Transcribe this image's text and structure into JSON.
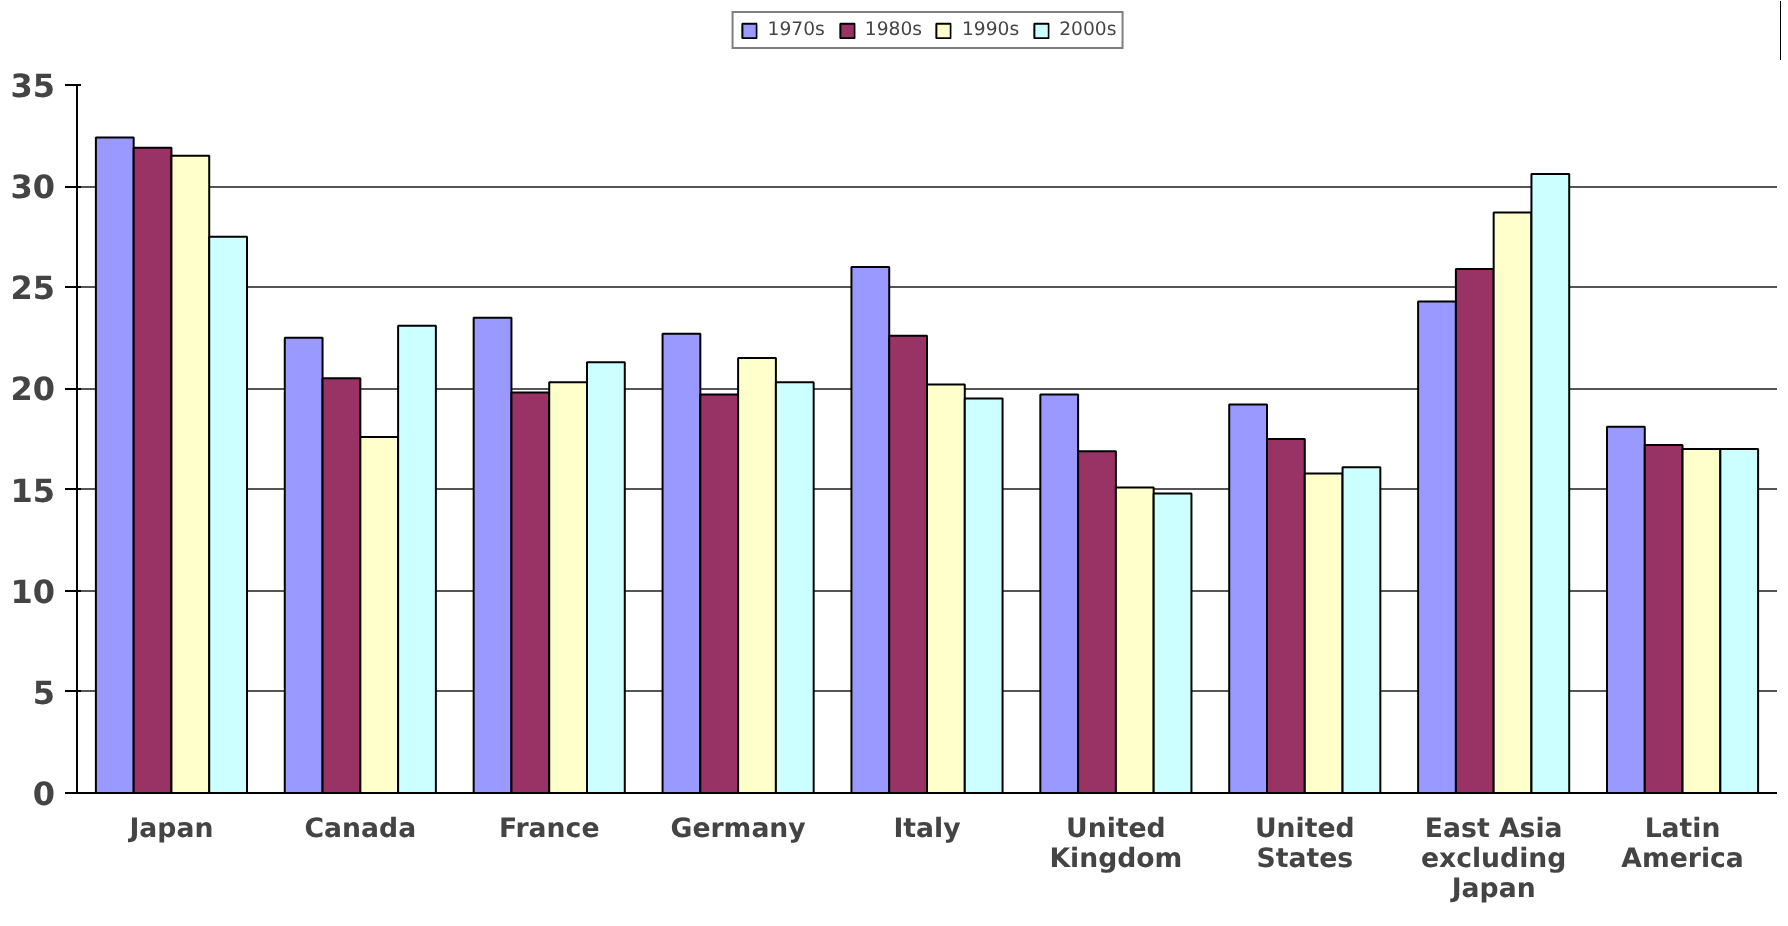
{
  "chart_data": {
    "type": "bar",
    "categories": [
      "Japan",
      "Canada",
      "France",
      "Germany",
      "Italy",
      "United\nKingdom",
      "United\nStates",
      "East Asia\nexcluding\nJapan",
      "Latin\nAmerica"
    ],
    "series": [
      {
        "name": "1970s",
        "color": "#9999ff",
        "values": [
          32.4,
          22.5,
          23.5,
          22.7,
          26.0,
          19.7,
          19.2,
          24.3,
          18.1
        ]
      },
      {
        "name": "1980s",
        "color": "#993366",
        "values": [
          31.9,
          20.5,
          19.8,
          19.7,
          22.6,
          16.9,
          17.5,
          25.9,
          17.2
        ]
      },
      {
        "name": "1990s",
        "color": "#ffffcc",
        "values": [
          31.5,
          17.6,
          20.3,
          21.5,
          20.2,
          15.1,
          15.8,
          28.7,
          17.0
        ]
      },
      {
        "name": "2000s",
        "color": "#ccffff",
        "values": [
          27.5,
          23.1,
          21.3,
          20.3,
          19.5,
          14.8,
          16.1,
          30.6,
          17.0
        ]
      }
    ],
    "ylim": [
      0,
      35
    ],
    "yticks": [
      0,
      5,
      10,
      15,
      20,
      25,
      30,
      35
    ],
    "grid": "y",
    "legend": "top"
  }
}
